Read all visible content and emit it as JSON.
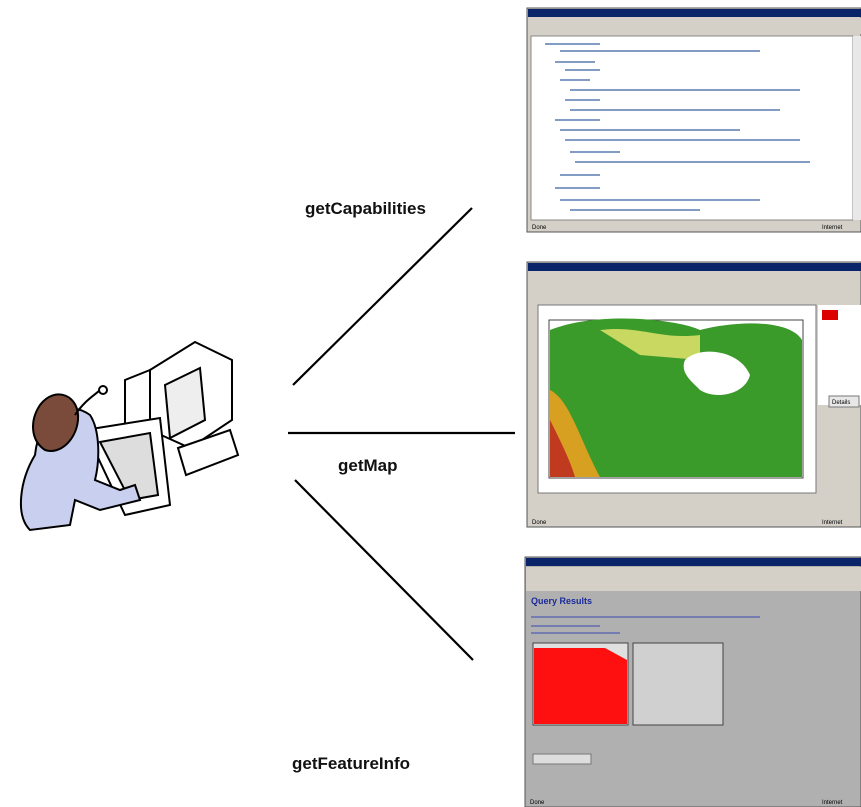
{
  "labels": {
    "capabilities": "getCapabilities",
    "map": "getMap",
    "feature_info": "getFeatureInfo"
  },
  "windows": [
    {
      "status": "Done",
      "zone": "Internet"
    },
    {
      "status": "Done",
      "zone": "Internet",
      "button": "Details"
    },
    {
      "status": "Done",
      "zone": "Internet",
      "heading": "Query Results"
    }
  ]
}
